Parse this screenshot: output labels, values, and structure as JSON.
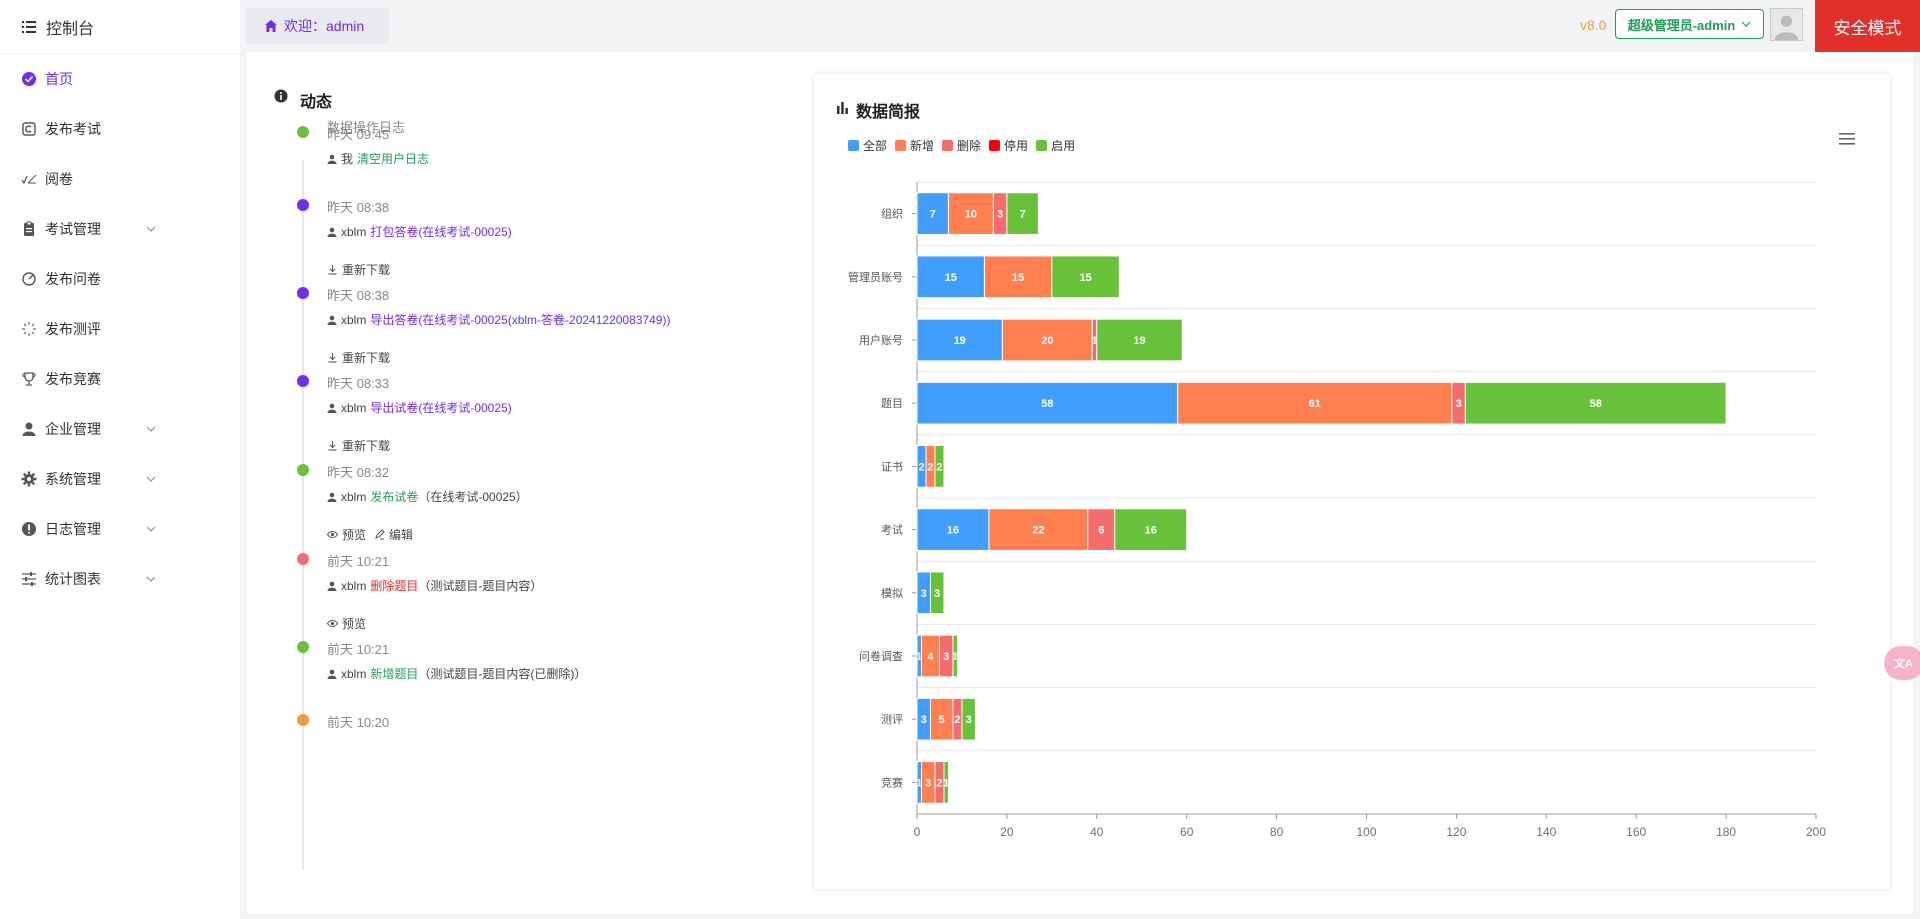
{
  "sidebar": {
    "header": "控制台",
    "items": [
      {
        "label": "首页",
        "icon": "home-check-icon",
        "active": true,
        "expandable": false
      },
      {
        "label": "发布考试",
        "icon": "publish-exam-icon",
        "active": false,
        "expandable": false
      },
      {
        "label": "阅卷",
        "icon": "grading-icon",
        "active": false,
        "expandable": false
      },
      {
        "label": "考试管理",
        "icon": "clipboard-icon",
        "active": false,
        "expandable": true
      },
      {
        "label": "发布问卷",
        "icon": "survey-icon",
        "active": false,
        "expandable": false
      },
      {
        "label": "发布测评",
        "icon": "evaluation-icon",
        "active": false,
        "expandable": false
      },
      {
        "label": "发布竞赛",
        "icon": "trophy-icon",
        "active": false,
        "expandable": false
      },
      {
        "label": "企业管理",
        "icon": "user-icon",
        "active": false,
        "expandable": true
      },
      {
        "label": "系统管理",
        "icon": "gear-icon",
        "active": false,
        "expandable": true
      },
      {
        "label": "日志管理",
        "icon": "alert-icon",
        "active": false,
        "expandable": true
      },
      {
        "label": "统计图表",
        "icon": "sliders-icon",
        "active": false,
        "expandable": true
      }
    ]
  },
  "topbar": {
    "welcome": "欢迎：admin",
    "version": "v8.0",
    "role": "超级管理员-admin",
    "safe_mode": "安全模式"
  },
  "timeline": {
    "title": "动态",
    "subtitle": "数据操作日志",
    "entries": [
      {
        "time": "昨天 09:45",
        "dot": "#67c23a",
        "user": "我",
        "action": "清空用户日志",
        "action_color": "#1f9e5a",
        "detail": "",
        "subs": []
      },
      {
        "time": "昨天 08:38",
        "dot": "#6e2cf4",
        "user": "xblm",
        "action": "打包答卷(在线考试-00025)",
        "action_color": "#6e2cf4",
        "detail": "",
        "subs": [
          {
            "icon": "download-icon",
            "label": "重新下载"
          }
        ]
      },
      {
        "time": "昨天 08:38",
        "dot": "#6e2cf4",
        "user": "xblm",
        "action": "导出答卷(在线考试-00025(xblm-答卷-20241220083749))",
        "action_color": "#6e2cf4",
        "detail": "",
        "subs": [
          {
            "icon": "download-icon",
            "label": "重新下载"
          }
        ]
      },
      {
        "time": "昨天 08:33",
        "dot": "#6e2cf4",
        "user": "xblm",
        "action": "导出试卷(在线考试-00025)",
        "action_color": "#6e2cf4",
        "detail": "",
        "subs": [
          {
            "icon": "download-icon",
            "label": "重新下载"
          }
        ]
      },
      {
        "time": "昨天 08:32",
        "dot": "#67c23a",
        "user": "xblm",
        "action": "发布试卷",
        "action_color": "#1f9e5a",
        "detail": "（在线考试-00025）",
        "subs": [
          {
            "icon": "eye-icon",
            "label": "预览"
          },
          {
            "icon": "edit-icon",
            "label": "编辑"
          }
        ]
      },
      {
        "time": "前天 10:21",
        "dot": "#f56c6c",
        "user": "xblm",
        "action": "删除题目",
        "action_color": "#e22f2a",
        "detail": "（测试题目-题目内容）",
        "subs": [
          {
            "icon": "eye-icon",
            "label": "预览"
          }
        ]
      },
      {
        "time": "前天 10:21",
        "dot": "#67c23a",
        "user": "xblm",
        "action": "新增题目",
        "action_color": "#1f9e5a",
        "detail": "（测试题目-题目内容(已删除)）",
        "subs": []
      },
      {
        "time": "前天 10:20",
        "dot": "#e6a23c",
        "user": "",
        "action": "",
        "action_color": "#333",
        "detail": "",
        "subs": []
      }
    ]
  },
  "chart_data": {
    "type": "bar",
    "orientation": "horizontal",
    "stacked": true,
    "title": "数据简报",
    "categories": [
      "组织",
      "管理员账号",
      "用户账号",
      "题目",
      "证书",
      "考试",
      "模拟",
      "问卷调查",
      "测评",
      "竞赛"
    ],
    "series": [
      {
        "name": "全部",
        "color": "#409eff",
        "values": [
          7,
          15,
          19,
          58,
          2,
          16,
          3,
          1,
          3,
          1
        ]
      },
      {
        "name": "新增",
        "color": "#ff7f50",
        "values": [
          10,
          15,
          20,
          61,
          2,
          22,
          0,
          4,
          5,
          3
        ]
      },
      {
        "name": "删除",
        "color": "#f56c6c",
        "values": [
          3,
          0,
          1,
          3,
          0,
          6,
          0,
          3,
          2,
          2
        ]
      },
      {
        "name": "停用",
        "color": "#ff0000",
        "values": [
          0,
          0,
          0,
          0,
          0,
          0,
          0,
          0,
          0,
          0
        ]
      },
      {
        "name": "启用",
        "color": "#67c23a",
        "values": [
          7,
          15,
          19,
          58,
          2,
          16,
          3,
          1,
          3,
          1
        ]
      }
    ],
    "xlim": [
      0,
      200
    ],
    "xticks": [
      0,
      20,
      40,
      60,
      80,
      100,
      120,
      140,
      160,
      180,
      200
    ],
    "legend_position": "top-left",
    "grid": true
  },
  "floating": {
    "label": "文A"
  }
}
